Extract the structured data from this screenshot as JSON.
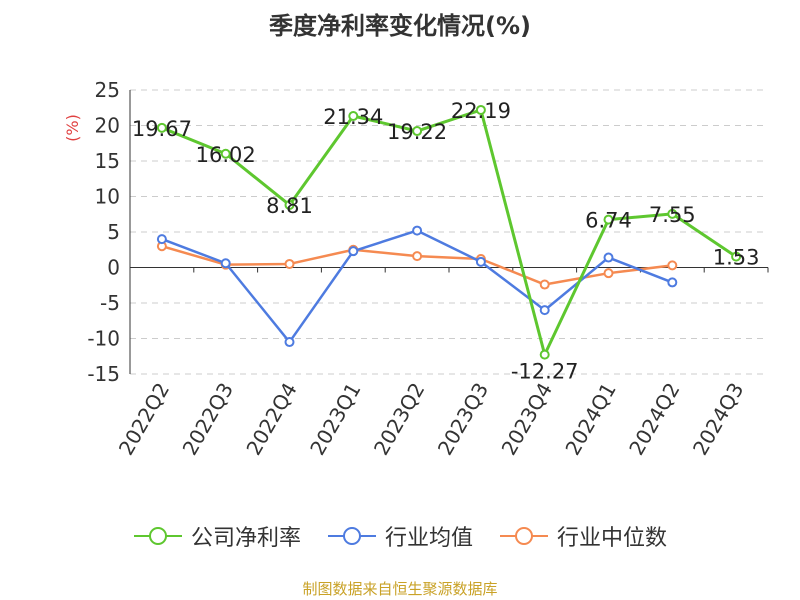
{
  "title": "季度净利率变化情况(%)",
  "source": "制图数据来自恒生聚源数据库",
  "colors": {
    "company": "#5ec72f",
    "industry_avg": "#4e7be0",
    "industry_median": "#f58a51",
    "unit": "#e04040"
  },
  "chart_data": {
    "type": "line",
    "title": "季度净利率变化情况(%)",
    "xlabel": "",
    "ylabel": "(%)",
    "ylim": [
      -15,
      25
    ],
    "yticks": [
      -15,
      -10,
      -5,
      0,
      5,
      10,
      15,
      20,
      25
    ],
    "grid": true,
    "legend": "bottom",
    "categories": [
      "2022Q2",
      "2022Q3",
      "2022Q4",
      "2023Q1",
      "2023Q2",
      "2023Q3",
      "2023Q4",
      "2024Q1",
      "2024Q2",
      "2024Q3"
    ],
    "series": [
      {
        "name": "公司净利率",
        "color": "#5ec72f",
        "labels": true,
        "values": [
          19.67,
          16.02,
          8.81,
          21.34,
          19.22,
          22.19,
          -12.27,
          6.74,
          7.55,
          1.53
        ]
      },
      {
        "name": "行业均值",
        "color": "#4e7be0",
        "labels": false,
        "values": [
          4.0,
          0.6,
          -10.5,
          2.3,
          5.2,
          0.8,
          -6.0,
          1.4,
          -2.1,
          null
        ]
      },
      {
        "name": "行业中位数",
        "color": "#f58a51",
        "labels": false,
        "values": [
          3.0,
          0.4,
          0.5,
          2.5,
          1.6,
          1.2,
          -2.4,
          -0.8,
          0.3,
          null
        ]
      }
    ]
  }
}
